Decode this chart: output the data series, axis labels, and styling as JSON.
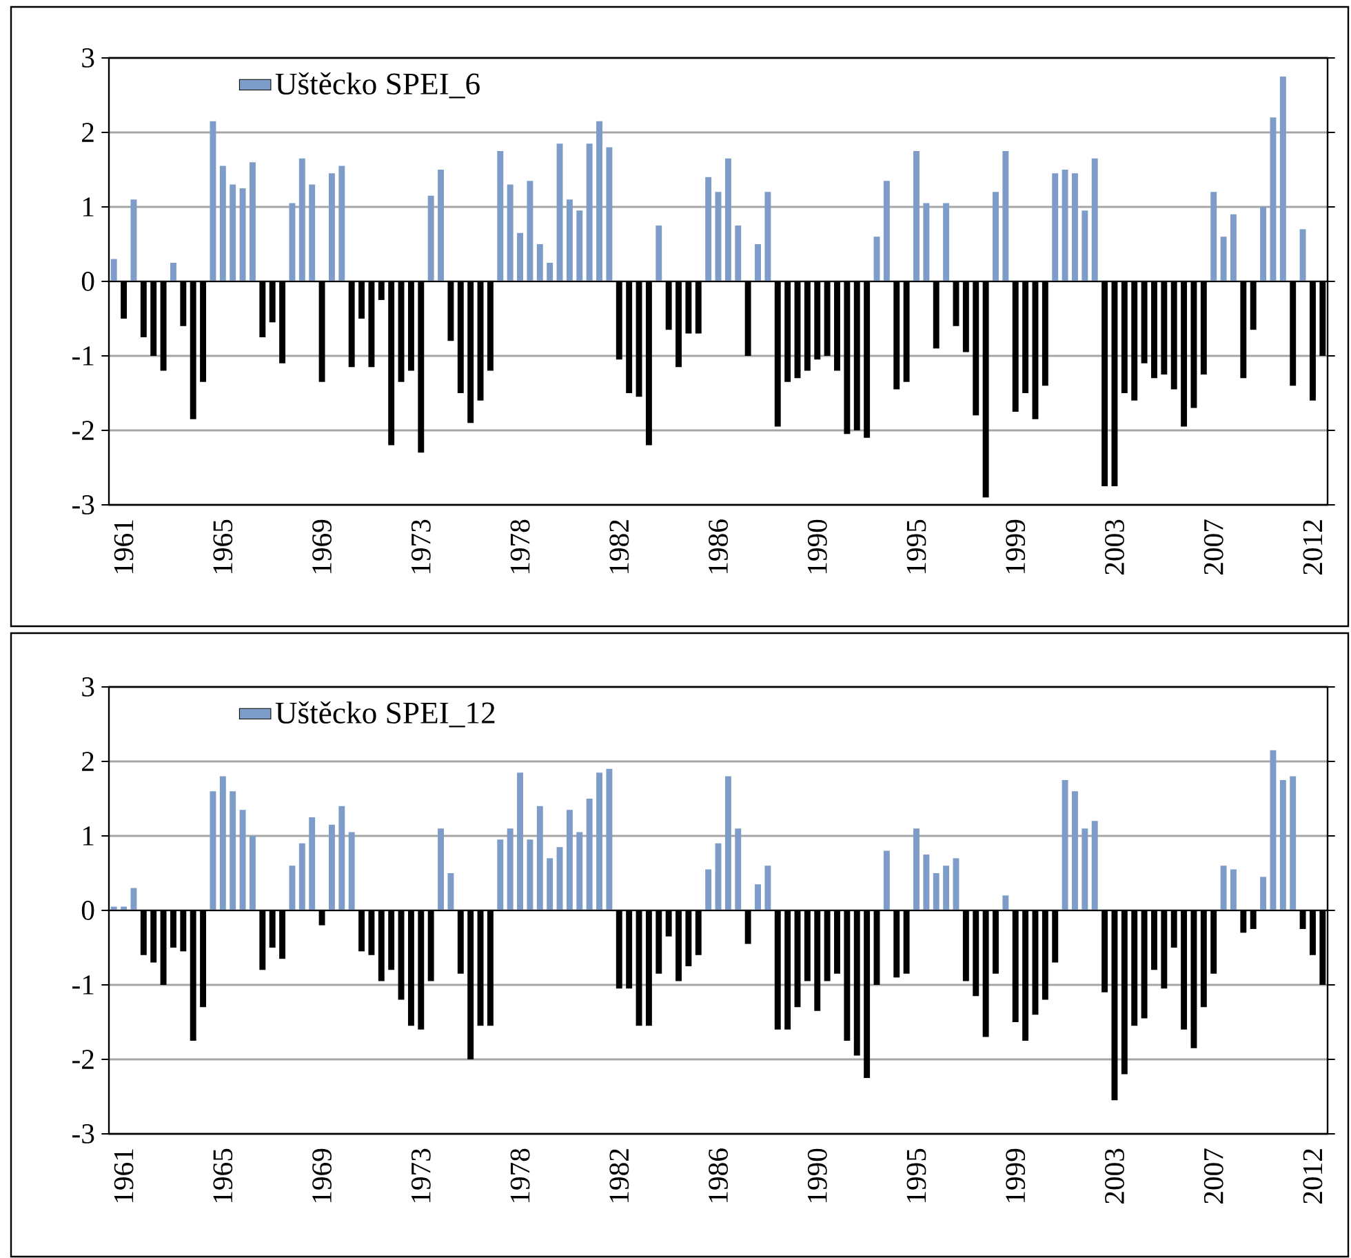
{
  "chart_data": [
    {
      "type": "bar",
      "categories": [
        null,
        "1961",
        null,
        null,
        null,
        null,
        null,
        null,
        null,
        null,
        null,
        "1965",
        null,
        null,
        null,
        null,
        null,
        null,
        null,
        null,
        null,
        "1969",
        null,
        null,
        null,
        null,
        null,
        null,
        null,
        null,
        null,
        "1973",
        null,
        null,
        null,
        null,
        null,
        null,
        null,
        null,
        null,
        "1978",
        null,
        null,
        null,
        null,
        null,
        null,
        null,
        null,
        null,
        "1982",
        null,
        null,
        null,
        null,
        null,
        null,
        null,
        null,
        null,
        "1986",
        null,
        null,
        null,
        null,
        null,
        null,
        null,
        null,
        null,
        "1990",
        null,
        null,
        null,
        null,
        null,
        null,
        null,
        null,
        null,
        "1995",
        null,
        null,
        null,
        null,
        null,
        null,
        null,
        null,
        null,
        "1999",
        null,
        null,
        null,
        null,
        null,
        null,
        null,
        null,
        null,
        "2003",
        null,
        null,
        null,
        null,
        null,
        null,
        null,
        null,
        null,
        "2007",
        null,
        null,
        null,
        null,
        null,
        null,
        null,
        null,
        null,
        "2012",
        null
      ],
      "series": [
        {
          "name": "Uštěcko SPEI_6",
          "color": "#7d9cc8",
          "values": [
            0.3,
            -0.5,
            1.1,
            -0.75,
            -1.0,
            -1.2,
            0.25,
            -0.6,
            -1.85,
            -1.35,
            2.15,
            1.55,
            1.3,
            1.25,
            1.6,
            -0.75,
            -0.55,
            -1.1,
            1.05,
            1.65,
            1.3,
            -1.35,
            1.45,
            1.55,
            -1.15,
            -0.5,
            -1.15,
            -0.25,
            -2.2,
            -1.35,
            -1.2,
            -2.3,
            1.15,
            1.5,
            -0.8,
            -1.5,
            -1.9,
            -1.6,
            -1.2,
            1.75,
            1.3,
            0.65,
            1.35,
            0.5,
            0.25,
            1.85,
            1.1,
            0.95,
            1.85,
            2.15,
            1.8,
            -1.05,
            -1.5,
            -1.55,
            -2.2,
            0.75,
            -0.65,
            -1.15,
            -0.7,
            -0.7,
            1.4,
            1.2,
            1.65,
            0.75,
            -1.0,
            0.5,
            1.2,
            -1.95,
            -1.35,
            -1.3,
            -1.2,
            -1.05,
            -1.0,
            -1.2,
            -2.05,
            -2.0,
            -2.1,
            0.6,
            1.35,
            -1.45,
            -1.35,
            1.75,
            1.05,
            -0.9,
            1.05,
            -0.6,
            -0.95,
            -1.8,
            -2.9,
            1.2,
            1.75,
            -1.75,
            -1.5,
            -1.85,
            -1.4,
            1.45,
            1.5,
            1.45,
            0.95,
            1.65,
            -2.75,
            -2.75,
            -1.5,
            -1.6,
            -1.1,
            -1.3,
            -1.25,
            -1.45,
            -1.95,
            -1.7,
            -1.25,
            1.2,
            0.6,
            0.9,
            -1.3,
            -0.65,
            1.0,
            2.2,
            2.75,
            -1.4,
            0.7,
            -1.6,
            -1.0
          ],
          "colors": [
            "#7d9cc8",
            "#000000",
            "#7d9cc8",
            "#000000",
            "#000000",
            "#000000",
            "#7d9cc8",
            "#000000",
            "#000000",
            "#000000",
            "#7d9cc8",
            "#7d9cc8",
            "#7d9cc8",
            "#7d9cc8",
            "#7d9cc8",
            "#000000",
            "#000000",
            "#000000",
            "#7d9cc8",
            "#7d9cc8",
            "#7d9cc8",
            "#000000",
            "#7d9cc8",
            "#7d9cc8",
            "#000000",
            "#000000",
            "#000000",
            "#000000",
            "#000000",
            "#000000",
            "#000000",
            "#000000",
            "#7d9cc8",
            "#7d9cc8",
            "#000000",
            "#000000",
            "#000000",
            "#000000",
            "#000000",
            "#7d9cc8",
            "#7d9cc8",
            "#7d9cc8",
            "#7d9cc8",
            "#7d9cc8",
            "#7d9cc8",
            "#7d9cc8",
            "#7d9cc8",
            "#7d9cc8",
            "#7d9cc8",
            "#7d9cc8",
            "#7d9cc8",
            "#000000",
            "#000000",
            "#000000",
            "#000000",
            "#7d9cc8",
            "#000000",
            "#000000",
            "#000000",
            "#000000",
            "#7d9cc8",
            "#7d9cc8",
            "#7d9cc8",
            "#7d9cc8",
            "#000000",
            "#7d9cc8",
            "#7d9cc8",
            "#000000",
            "#000000",
            "#000000",
            "#000000",
            "#000000",
            "#000000",
            "#000000",
            "#000000",
            "#000000",
            "#000000",
            "#7d9cc8",
            "#7d9cc8",
            "#000000",
            "#000000",
            "#7d9cc8",
            "#7d9cc8",
            "#000000",
            "#7d9cc8",
            "#000000",
            "#000000",
            "#000000",
            "#000000",
            "#7d9cc8",
            "#7d9cc8",
            "#000000",
            "#000000",
            "#000000",
            "#000000",
            "#7d9cc8",
            "#7d9cc8",
            "#7d9cc8",
            "#7d9cc8",
            "#7d9cc8",
            "#000000",
            "#000000",
            "#000000",
            "#000000",
            "#000000",
            "#000000",
            "#000000",
            "#000000",
            "#000000",
            "#000000",
            "#000000",
            "#7d9cc8",
            "#7d9cc8",
            "#7d9cc8",
            "#000000",
            "#000000",
            "#7d9cc8",
            "#7d9cc8",
            "#7d9cc8",
            "#000000",
            "#7d9cc8",
            "#000000",
            "#000000"
          ]
        }
      ],
      "ylim": [
        -3,
        3
      ],
      "yticks": [
        -3,
        -2,
        -1,
        0,
        1,
        2,
        3
      ],
      "grid": "y",
      "legend": "top left"
    },
    {
      "type": "bar",
      "categories": [
        null,
        "1961",
        null,
        null,
        null,
        null,
        null,
        null,
        null,
        null,
        null,
        "1965",
        null,
        null,
        null,
        null,
        null,
        null,
        null,
        null,
        null,
        "1969",
        null,
        null,
        null,
        null,
        null,
        null,
        null,
        null,
        null,
        "1973",
        null,
        null,
        null,
        null,
        null,
        null,
        null,
        null,
        null,
        "1978",
        null,
        null,
        null,
        null,
        null,
        null,
        null,
        null,
        null,
        "1982",
        null,
        null,
        null,
        null,
        null,
        null,
        null,
        null,
        null,
        "1986",
        null,
        null,
        null,
        null,
        null,
        null,
        null,
        null,
        null,
        "1990",
        null,
        null,
        null,
        null,
        null,
        null,
        null,
        null,
        null,
        "1995",
        null,
        null,
        null,
        null,
        null,
        null,
        null,
        null,
        null,
        "1999",
        null,
        null,
        null,
        null,
        null,
        null,
        null,
        null,
        null,
        "2003",
        null,
        null,
        null,
        null,
        null,
        null,
        null,
        null,
        null,
        "2007",
        null,
        null,
        null,
        null,
        null,
        null,
        null,
        null,
        null,
        "2012",
        null
      ],
      "series": [
        {
          "name": "Uštěcko SPEI_12",
          "color": "#7d9cc8",
          "values": [
            0.05,
            0.05,
            0.3,
            -0.6,
            -0.7,
            -1.0,
            -0.5,
            -0.55,
            -1.75,
            -1.3,
            1.6,
            1.8,
            1.6,
            1.35,
            1.0,
            -0.8,
            -0.5,
            -0.65,
            0.6,
            0.9,
            1.25,
            -0.2,
            1.15,
            1.4,
            1.05,
            -0.55,
            -0.6,
            -0.95,
            -0.8,
            -1.2,
            -1.55,
            -1.6,
            -0.95,
            1.1,
            0.5,
            -0.85,
            -2.0,
            -1.55,
            -1.55,
            0.95,
            1.1,
            1.85,
            0.95,
            1.4,
            0.7,
            0.85,
            1.35,
            1.05,
            1.5,
            1.85,
            1.9,
            -1.05,
            -1.05,
            -1.55,
            -1.55,
            -0.85,
            -0.35,
            -0.95,
            -0.75,
            -0.6,
            0.55,
            0.9,
            1.8,
            1.1,
            -0.45,
            0.35,
            0.6,
            -1.6,
            -1.6,
            -1.3,
            -0.95,
            -1.35,
            -0.95,
            -0.85,
            -1.75,
            -1.95,
            -2.25,
            -1.0,
            0.8,
            -0.9,
            -0.85,
            1.1,
            0.75,
            0.5,
            0.6,
            0.7,
            -0.95,
            -1.15,
            -1.7,
            -0.85,
            0.2,
            -1.5,
            -1.75,
            -1.4,
            -1.2,
            -0.7,
            1.75,
            1.6,
            1.1,
            1.2,
            -1.1,
            -2.55,
            -2.2,
            -1.55,
            -1.45,
            -0.8,
            -1.05,
            -0.5,
            -1.6,
            -1.85,
            -1.3,
            -0.85,
            0.6,
            0.55,
            -0.3,
            -0.25,
            0.45,
            2.15,
            1.75,
            1.8,
            -0.25,
            -0.6,
            -1.0
          ],
          "colors": [
            "#7d9cc8",
            "#7d9cc8",
            "#7d9cc8",
            "#000000",
            "#000000",
            "#000000",
            "#000000",
            "#000000",
            "#000000",
            "#000000",
            "#7d9cc8",
            "#7d9cc8",
            "#7d9cc8",
            "#7d9cc8",
            "#7d9cc8",
            "#000000",
            "#000000",
            "#000000",
            "#7d9cc8",
            "#7d9cc8",
            "#7d9cc8",
            "#000000",
            "#7d9cc8",
            "#7d9cc8",
            "#7d9cc8",
            "#000000",
            "#000000",
            "#000000",
            "#000000",
            "#000000",
            "#000000",
            "#000000",
            "#000000",
            "#7d9cc8",
            "#7d9cc8",
            "#000000",
            "#000000",
            "#000000",
            "#000000",
            "#7d9cc8",
            "#7d9cc8",
            "#7d9cc8",
            "#7d9cc8",
            "#7d9cc8",
            "#7d9cc8",
            "#7d9cc8",
            "#7d9cc8",
            "#7d9cc8",
            "#7d9cc8",
            "#7d9cc8",
            "#7d9cc8",
            "#000000",
            "#000000",
            "#000000",
            "#000000",
            "#000000",
            "#000000",
            "#000000",
            "#000000",
            "#000000",
            "#7d9cc8",
            "#7d9cc8",
            "#7d9cc8",
            "#7d9cc8",
            "#000000",
            "#7d9cc8",
            "#7d9cc8",
            "#000000",
            "#000000",
            "#000000",
            "#000000",
            "#000000",
            "#000000",
            "#000000",
            "#000000",
            "#000000",
            "#000000",
            "#000000",
            "#7d9cc8",
            "#000000",
            "#000000",
            "#7d9cc8",
            "#7d9cc8",
            "#7d9cc8",
            "#7d9cc8",
            "#7d9cc8",
            "#000000",
            "#000000",
            "#000000",
            "#000000",
            "#7d9cc8",
            "#000000",
            "#000000",
            "#000000",
            "#000000",
            "#000000",
            "#7d9cc8",
            "#7d9cc8",
            "#7d9cc8",
            "#7d9cc8",
            "#000000",
            "#000000",
            "#000000",
            "#000000",
            "#000000",
            "#000000",
            "#000000",
            "#000000",
            "#000000",
            "#000000",
            "#000000",
            "#000000",
            "#7d9cc8",
            "#7d9cc8",
            "#000000",
            "#000000",
            "#7d9cc8",
            "#7d9cc8",
            "#7d9cc8",
            "#7d9cc8",
            "#000000",
            "#000000",
            "#000000"
          ]
        }
      ],
      "ylim": [
        -3,
        3
      ],
      "yticks": [
        -3,
        -2,
        -1,
        0,
        1,
        2,
        3
      ],
      "grid": "y",
      "legend": "top left"
    }
  ]
}
